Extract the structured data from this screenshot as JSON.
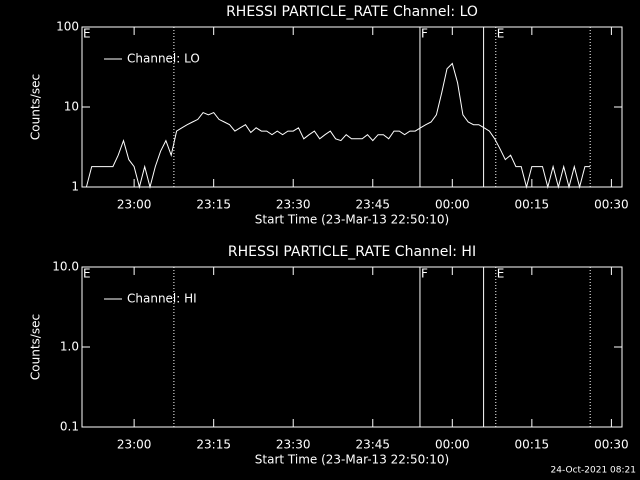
{
  "chart_data": [
    {
      "type": "line",
      "title": "RHESSI PARTICLE_RATE Channel: LO",
      "xlabel": "Start Time (23-Mar-13 22:50:10)",
      "ylabel": "Counts/sec",
      "ylog": true,
      "ylim": [
        1,
        100
      ],
      "yticks": [
        1,
        10,
        100
      ],
      "xlim": [
        50.17,
        152
      ],
      "xticks": [
        {
          "value": 60,
          "label": "23:00"
        },
        {
          "value": 75,
          "label": "23:15"
        },
        {
          "value": 90,
          "label": "23:30"
        },
        {
          "value": 105,
          "label": "23:45"
        },
        {
          "value": 120,
          "label": "00:00"
        },
        {
          "value": 135,
          "label": "00:15"
        },
        {
          "value": 150,
          "label": "00:30"
        }
      ],
      "x": [
        51,
        52,
        53,
        54,
        55,
        56,
        57,
        58,
        59,
        60,
        61,
        62,
        63,
        64,
        65,
        66,
        67,
        68,
        69,
        70,
        71,
        72,
        73,
        74,
        75,
        76,
        77,
        78,
        79,
        80,
        81,
        82,
        83,
        84,
        85,
        86,
        87,
        88,
        89,
        90,
        91,
        92,
        93,
        94,
        95,
        96,
        97,
        98,
        99,
        100,
        101,
        102,
        103,
        104,
        105,
        106,
        107,
        108,
        109,
        110,
        111,
        112,
        113,
        114,
        115,
        116,
        117,
        118,
        119,
        120,
        121,
        122,
        123,
        124,
        125,
        126,
        127,
        128,
        129,
        130,
        131,
        132,
        133,
        134,
        135,
        136,
        137,
        138,
        139,
        140,
        141,
        142,
        143,
        144,
        145,
        146
      ],
      "series": [
        {
          "name": "Channel: LO",
          "color": "#ffffff",
          "values": [
            1,
            1.8,
            1.8,
            1.8,
            1.8,
            1.8,
            2.5,
            3.8,
            2.2,
            1.8,
            1,
            1.8,
            1,
            1.8,
            2.8,
            3.8,
            2.5,
            5,
            5.5,
            6,
            6.5,
            7,
            8.5,
            8,
            8.5,
            7,
            6.5,
            6,
            5,
            5.5,
            6,
            4.8,
            5.5,
            5,
            5,
            4.5,
            5,
            4.5,
            5,
            5,
            5.5,
            4,
            4.5,
            5,
            4,
            4.5,
            5,
            4,
            3.8,
            4.5,
            4,
            4,
            4,
            4.5,
            3.8,
            4.5,
            4.5,
            4,
            5,
            5,
            4.5,
            5,
            5,
            5.5,
            6,
            6.5,
            8,
            15,
            30,
            35,
            20,
            8,
            6.5,
            6,
            6,
            5.5,
            5,
            4,
            3,
            2.2,
            2.5,
            1.8,
            1.8,
            1,
            1.8,
            1.8,
            1.8,
            1,
            1.8,
            1,
            1.8,
            1,
            1.8,
            1,
            1.8,
            1.8
          ]
        }
      ],
      "vlines": [
        {
          "x": 67.5,
          "style": "dotted"
        },
        {
          "x": 113.9,
          "style": "solid"
        },
        {
          "x": 125.9,
          "style": "solid"
        },
        {
          "x": 128.2,
          "style": "dotted"
        },
        {
          "x": 146,
          "style": "dotted"
        }
      ],
      "annotations": [
        {
          "text": "E",
          "x": 50.17
        },
        {
          "text": "F",
          "x": 113.9
        },
        {
          "text": "E",
          "x": 128.2
        }
      ],
      "legend": "upper left"
    },
    {
      "type": "line",
      "title": "RHESSI PARTICLE_RATE Channel: HI",
      "xlabel": "Start Time (23-Mar-13 22:50:10)",
      "ylabel": "Counts/sec",
      "ylog": true,
      "ylim": [
        0.1,
        10
      ],
      "yticks": [
        {
          "value": 0.1,
          "label": "0.1"
        },
        {
          "value": 1,
          "label": "1.0"
        },
        {
          "value": 10,
          "label": "10.0"
        }
      ],
      "xlim": [
        50.17,
        152
      ],
      "xticks": [
        {
          "value": 60,
          "label": "23:00"
        },
        {
          "value": 75,
          "label": "23:15"
        },
        {
          "value": 90,
          "label": "23:30"
        },
        {
          "value": 105,
          "label": "23:45"
        },
        {
          "value": 120,
          "label": "00:00"
        },
        {
          "value": 135,
          "label": "00:15"
        },
        {
          "value": 150,
          "label": "00:30"
        }
      ],
      "x": [],
      "series": [
        {
          "name": "Channel: HI",
          "color": "#ffffff",
          "values": []
        }
      ],
      "vlines": [
        {
          "x": 67.5,
          "style": "dotted"
        },
        {
          "x": 113.9,
          "style": "solid"
        },
        {
          "x": 125.9,
          "style": "solid"
        },
        {
          "x": 128.2,
          "style": "dotted"
        },
        {
          "x": 146,
          "style": "dotted"
        }
      ],
      "annotations": [
        {
          "text": "E",
          "x": 50.17
        },
        {
          "text": "F",
          "x": 113.9
        },
        {
          "text": "E",
          "x": 128.2
        }
      ],
      "legend": "upper left"
    }
  ],
  "footer": "24-Oct-2021 08:21"
}
